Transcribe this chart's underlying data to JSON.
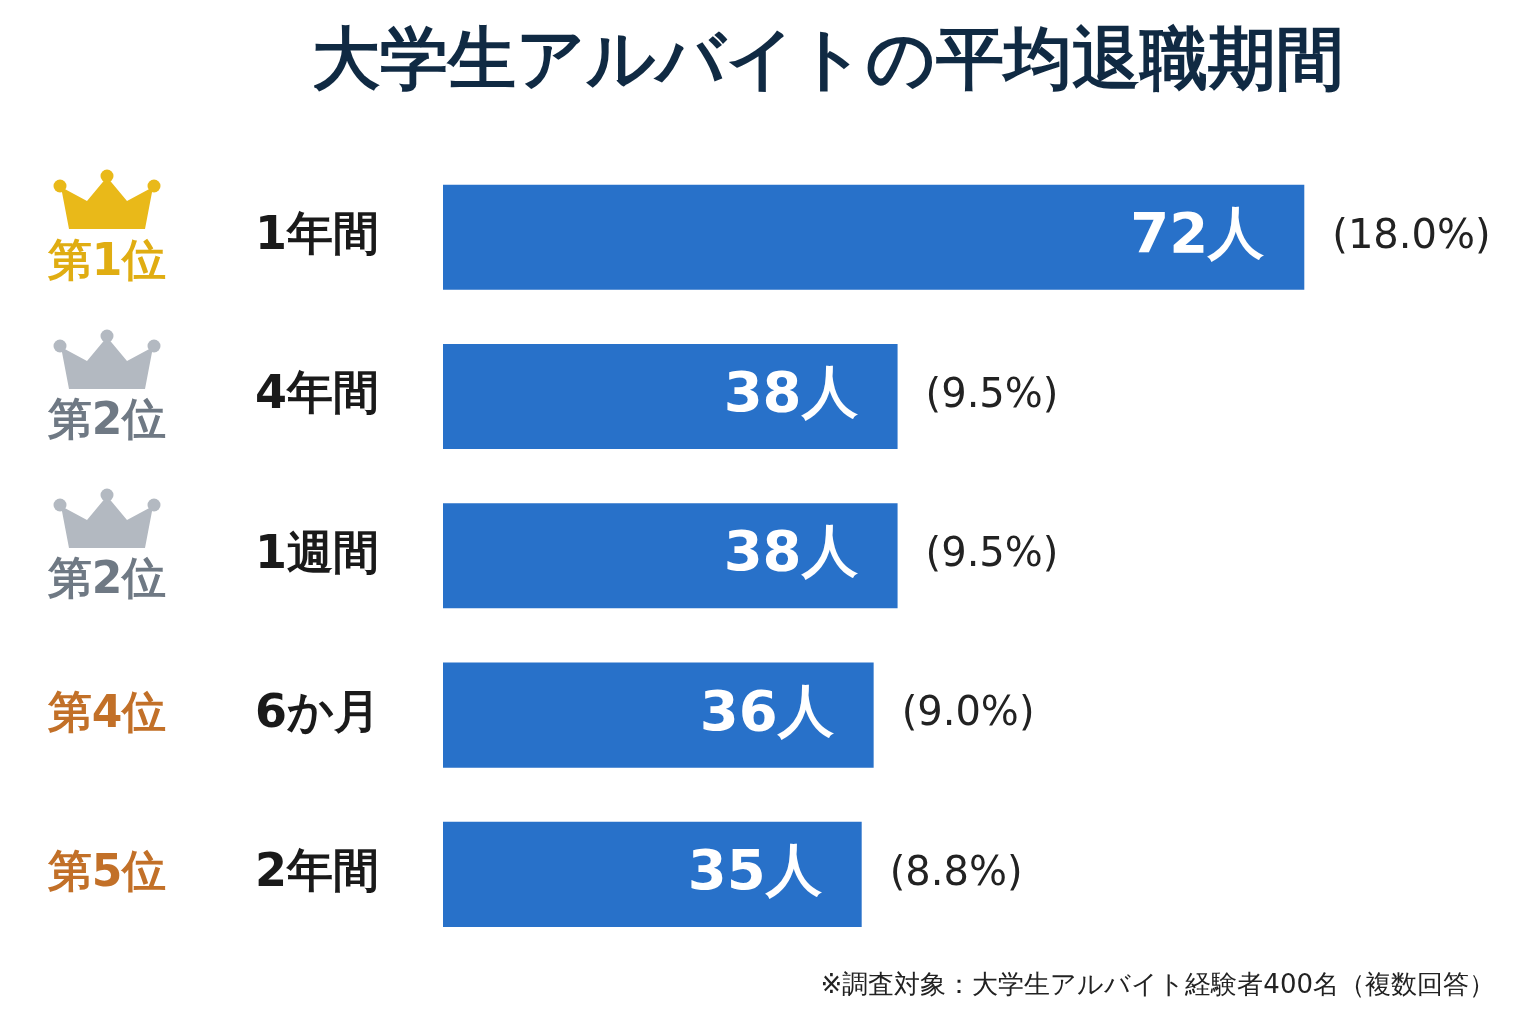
{
  "chart_data": {
    "type": "bar",
    "orientation": "horizontal",
    "title": "大学生アルバイトの平均退職期間",
    "categories": [
      "1年間",
      "4年間",
      "1週間",
      "6か月",
      "2年間"
    ],
    "values": [
      72,
      38,
      38,
      36,
      35
    ],
    "value_labels": [
      "72人",
      "38人",
      "38人",
      "36人",
      "35人"
    ],
    "color": "#2871c9",
    "tick_labels": "y",
    "annotations": [
      "第1位",
      "第2位",
      "第2位",
      "第4位",
      "第5位",
      {
        "text": "(18.0%)",
        "x": 72,
        "y": "1年間"
      },
      {
        "text": "(9.5%)",
        "x": 38,
        "y": "4年間"
      },
      {
        "text": "(9.5%)",
        "x": 38,
        "y": "1週間"
      },
      {
        "text": "(9.0%)",
        "x": 36,
        "y": "6か月"
      },
      {
        "text": "(8.8%)",
        "x": 35,
        "y": "2年間"
      },
      "※調査対象：大学生アルバイト経験者400名（複数回答）"
    ]
  }
}
